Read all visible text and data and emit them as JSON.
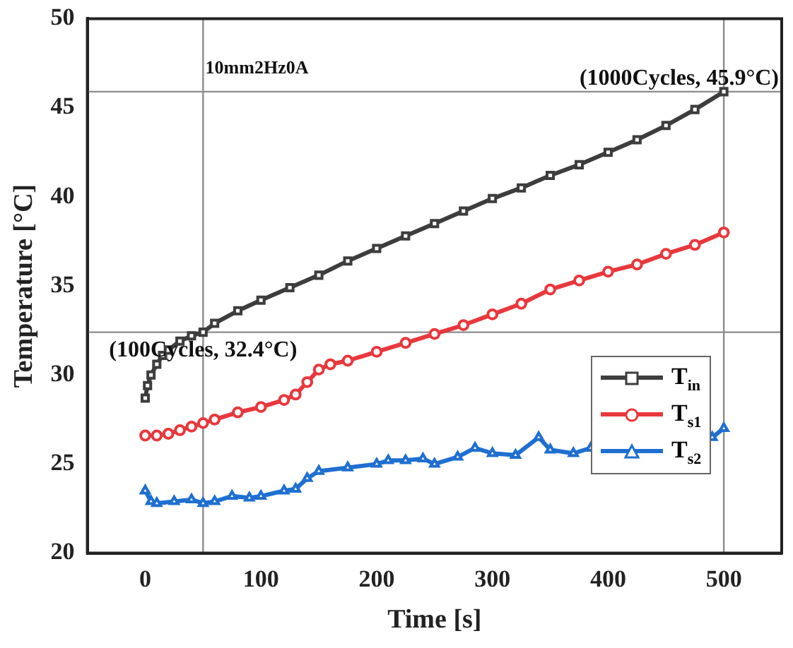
{
  "chart_data": {
    "type": "line",
    "xlabel": "Time [s]",
    "ylabel": "Temperature [°C]",
    "xlim": [
      -50,
      550
    ],
    "xticks": [
      0,
      100,
      200,
      300,
      400,
      500
    ],
    "ylim": [
      20,
      50
    ],
    "yticks": [
      20,
      25,
      30,
      35,
      40,
      45,
      50
    ],
    "grid": false,
    "legend": "right",
    "line_style": "solid",
    "series": [
      {
        "name": "T$_{in}$",
        "color": "#3d3d3d",
        "marker": "square",
        "x": [
          0,
          2,
          5,
          10,
          15,
          20,
          30,
          40,
          50,
          60,
          80,
          100,
          125,
          150,
          175,
          200,
          225,
          250,
          275,
          300,
          325,
          350,
          375,
          400,
          425,
          450,
          475,
          500
        ],
        "values": [
          28.7,
          29.4,
          30.0,
          30.6,
          31.1,
          31.4,
          31.9,
          32.2,
          32.4,
          32.9,
          33.6,
          34.2,
          34.9,
          35.6,
          36.4,
          37.1,
          37.8,
          38.5,
          39.2,
          39.9,
          40.5,
          41.2,
          41.8,
          42.5,
          43.2,
          44.0,
          44.9,
          45.9
        ]
      },
      {
        "name": "T$_{s1}$",
        "color": "#e8383d",
        "marker": "circle",
        "x": [
          0,
          10,
          20,
          30,
          40,
          50,
          60,
          80,
          100,
          120,
          130,
          140,
          150,
          160,
          175,
          200,
          225,
          250,
          275,
          300,
          325,
          350,
          375,
          400,
          425,
          450,
          475,
          500
        ],
        "values": [
          26.6,
          26.6,
          26.7,
          26.9,
          27.1,
          27.3,
          27.5,
          27.9,
          28.2,
          28.6,
          28.9,
          29.6,
          30.3,
          30.6,
          30.8,
          31.3,
          31.8,
          32.3,
          32.8,
          33.4,
          34.0,
          34.8,
          35.3,
          35.8,
          36.2,
          36.8,
          37.3,
          38.0
        ]
      },
      {
        "name": "T$_{s2}$",
        "color": "#1f6fd1",
        "marker": "triangle",
        "x": [
          0,
          5,
          10,
          25,
          40,
          50,
          60,
          75,
          90,
          100,
          120,
          130,
          140,
          150,
          175,
          200,
          210,
          225,
          240,
          250,
          270,
          285,
          300,
          320,
          340,
          350,
          370,
          385,
          400,
          450,
          490,
          500
        ],
        "values": [
          23.5,
          22.9,
          22.8,
          22.9,
          23.0,
          22.8,
          22.9,
          23.2,
          23.1,
          23.2,
          23.5,
          23.6,
          24.2,
          24.6,
          24.8,
          25.0,
          25.2,
          25.2,
          25.3,
          25.0,
          25.4,
          25.9,
          25.6,
          25.5,
          26.5,
          25.8,
          25.6,
          25.9,
          null,
          null,
          26.5,
          27.0
        ]
      }
    ],
    "ref_lines": [
      {
        "axis": "x",
        "value": 50,
        "color": "#8c8c8c"
      },
      {
        "axis": "x",
        "value": 500,
        "color": "#8c8c8c"
      },
      {
        "axis": "y",
        "value": 32.4,
        "color": "#8c8c8c"
      },
      {
        "axis": "y",
        "value": 45.9,
        "color": "#8c8c8c"
      }
    ],
    "annotations": [
      "10mm2Hz0A",
      {
        "text": "(100Cycles, 32.4°C)",
        "x": 50,
        "y": 32.4
      },
      {
        "text": "(1000Cycles, 45.9°C)",
        "x": 500,
        "y": 45.9
      }
    ]
  }
}
